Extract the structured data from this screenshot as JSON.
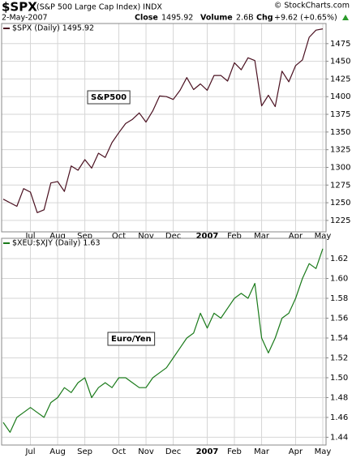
{
  "header": {
    "symbol": "$SPX",
    "description": "(S&P 500 Large Cap Index) INDX",
    "copyright": "© StockCharts.com",
    "date": "2-May-2007",
    "close_label": "Close",
    "close": "1495.92",
    "volume_label": "Volume",
    "volume": "2.6B",
    "change_label": "Chg",
    "change": "+9.62 (+0.65%)"
  },
  "chart_data": [
    {
      "type": "line",
      "annotation": "S&P500",
      "categories": [
        null,
        null,
        null,
        null,
        "Jul",
        null,
        null,
        null,
        "Aug",
        null,
        null,
        null,
        "Sep",
        null,
        null,
        null,
        null,
        "Oct",
        null,
        null,
        null,
        "Nov",
        null,
        null,
        null,
        "Dec",
        null,
        null,
        null,
        null,
        "2007",
        null,
        null,
        null,
        "Feb",
        null,
        null,
        null,
        "Mar",
        null,
        null,
        null,
        null,
        "Apr",
        null,
        null,
        null,
        "May"
      ],
      "series": [
        {
          "name": "$SPX (Daily) 1495.92",
          "color": "#4a1020",
          "values": [
            1255,
            1250,
            1245,
            1270,
            1265,
            1236,
            1240,
            1278,
            1280,
            1266,
            1302,
            1296,
            1311,
            1299,
            1320,
            1314,
            1335,
            1349,
            1362,
            1368,
            1377,
            1364,
            1380,
            1401,
            1400,
            1396,
            1409,
            1427,
            1410,
            1418,
            1409,
            1430,
            1430,
            1422,
            1448,
            1438,
            1455,
            1451,
            1387,
            1402,
            1386,
            1436,
            1421,
            1444,
            1452,
            1484,
            1494,
            1495.92
          ]
        }
      ],
      "ylim": [
        1210,
        1500
      ],
      "yticks": [
        1225,
        1250,
        1275,
        1300,
        1325,
        1350,
        1375,
        1400,
        1425,
        1450,
        1475
      ],
      "grid": true
    },
    {
      "type": "line",
      "annotation": "Euro/Yen",
      "categories": [
        null,
        null,
        null,
        null,
        "Jul",
        null,
        null,
        null,
        "Aug",
        null,
        null,
        null,
        "Sep",
        null,
        null,
        null,
        null,
        "Oct",
        null,
        null,
        null,
        "Nov",
        null,
        null,
        null,
        "Dec",
        null,
        null,
        null,
        null,
        "2007",
        null,
        null,
        null,
        "Feb",
        null,
        null,
        null,
        "Mar",
        null,
        null,
        null,
        null,
        "Apr",
        null,
        null,
        null,
        "May"
      ],
      "series": [
        {
          "name": "$XEU:$XJY (Daily) 1.63",
          "color": "#1a7a1a",
          "values": [
            1.455,
            1.445,
            1.46,
            1.465,
            1.47,
            1.465,
            1.46,
            1.475,
            1.48,
            1.49,
            1.485,
            1.495,
            1.5,
            1.48,
            1.49,
            1.495,
            1.49,
            1.5,
            1.5,
            1.495,
            1.49,
            1.49,
            1.5,
            1.505,
            1.51,
            1.52,
            1.53,
            1.54,
            1.545,
            1.565,
            1.55,
            1.565,
            1.56,
            1.57,
            1.58,
            1.585,
            1.58,
            1.595,
            1.54,
            1.525,
            1.54,
            1.56,
            1.565,
            1.58,
            1.6,
            1.615,
            1.61,
            1.63
          ]
        }
      ],
      "ylim": [
        1.433,
        1.638
      ],
      "yticks": [
        1.44,
        1.46,
        1.48,
        {
          "value": 1.5,
          "label": "1.50"
        },
        1.52,
        1.54,
        1.56,
        1.58,
        {
          "value": 1.6,
          "label": "1.60"
        },
        1.62
      ],
      "grid": true
    }
  ]
}
